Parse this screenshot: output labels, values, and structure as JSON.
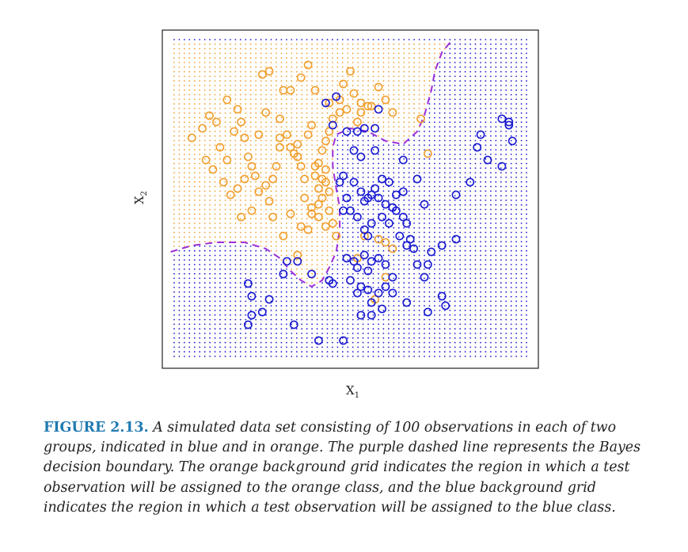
{
  "figure": {
    "label": "FIGURE 2.13.",
    "caption": "A simulated data set consisting of 100 observations in each of two groups, indicated in blue and in orange. The purple dashed line represents the Bayes decision boundary. The orange background grid indicates the region in which a test observation will be assigned to the orange class, and the blue background grid indicates the region in which a test observation will be assigned to the blue class."
  },
  "chart_data": {
    "type": "scatter",
    "xlabel": "X",
    "xlabel_subscript": "1",
    "ylabel": "X",
    "ylabel_subscript": "2",
    "xlim": [
      0,
      1
    ],
    "ylim": [
      0,
      1
    ],
    "axis_ticks": false,
    "colors": {
      "orange": "#f0a030",
      "blue": "#1a1ad0",
      "boundary": "#9b30d9"
    },
    "boundary": [
      [
        -0.01,
        0.33
      ],
      [
        0.05,
        0.35
      ],
      [
        0.12,
        0.36
      ],
      [
        0.2,
        0.36
      ],
      [
        0.26,
        0.34
      ],
      [
        0.3,
        0.31
      ],
      [
        0.33,
        0.27
      ],
      [
        0.36,
        0.24
      ],
      [
        0.39,
        0.22
      ],
      [
        0.42,
        0.24
      ],
      [
        0.44,
        0.28
      ],
      [
        0.46,
        0.33
      ],
      [
        0.47,
        0.4
      ],
      [
        0.47,
        0.47
      ],
      [
        0.46,
        0.53
      ],
      [
        0.45,
        0.6
      ],
      [
        0.45,
        0.66
      ],
      [
        0.46,
        0.7
      ],
      [
        0.5,
        0.72
      ],
      [
        0.55,
        0.71
      ],
      [
        0.6,
        0.68
      ],
      [
        0.65,
        0.67
      ],
      [
        0.69,
        0.71
      ],
      [
        0.71,
        0.76
      ],
      [
        0.73,
        0.84
      ],
      [
        0.74,
        0.9
      ],
      [
        0.76,
        0.96
      ],
      [
        0.79,
        1.0
      ]
    ],
    "series": [
      {
        "name": "orange",
        "points": [
          [
            0.05,
            0.69
          ],
          [
            0.08,
            0.72
          ],
          [
            0.1,
            0.76
          ],
          [
            0.12,
            0.74
          ],
          [
            0.13,
            0.66
          ],
          [
            0.15,
            0.62
          ],
          [
            0.17,
            0.71
          ],
          [
            0.19,
            0.74
          ],
          [
            0.2,
            0.69
          ],
          [
            0.22,
            0.6
          ],
          [
            0.24,
            0.7
          ],
          [
            0.23,
            0.57
          ],
          [
            0.26,
            0.54
          ],
          [
            0.27,
            0.49
          ],
          [
            0.28,
            0.56
          ],
          [
            0.29,
            0.6
          ],
          [
            0.3,
            0.66
          ],
          [
            0.3,
            0.69
          ],
          [
            0.32,
            0.7
          ],
          [
            0.33,
            0.66
          ],
          [
            0.34,
            0.64
          ],
          [
            0.35,
            0.63
          ],
          [
            0.35,
            0.67
          ],
          [
            0.36,
            0.6
          ],
          [
            0.37,
            0.56
          ],
          [
            0.38,
            0.7
          ],
          [
            0.39,
            0.73
          ],
          [
            0.4,
            0.6
          ],
          [
            0.41,
            0.53
          ],
          [
            0.42,
            0.5
          ],
          [
            0.43,
            0.55
          ],
          [
            0.44,
            0.52
          ],
          [
            0.44,
            0.46
          ],
          [
            0.45,
            0.42
          ],
          [
            0.46,
            0.38
          ],
          [
            0.43,
            0.41
          ],
          [
            0.41,
            0.44
          ],
          [
            0.39,
            0.47
          ],
          [
            0.37,
            0.5
          ],
          [
            0.4,
            0.57
          ],
          [
            0.41,
            0.61
          ],
          [
            0.42,
            0.65
          ],
          [
            0.43,
            0.68
          ],
          [
            0.44,
            0.71
          ],
          [
            0.45,
            0.75
          ],
          [
            0.47,
            0.77
          ],
          [
            0.49,
            0.78
          ],
          [
            0.52,
            0.74
          ],
          [
            0.53,
            0.77
          ],
          [
            0.55,
            0.79
          ],
          [
            0.58,
            0.85
          ],
          [
            0.6,
            0.81
          ],
          [
            0.62,
            0.77
          ],
          [
            0.7,
            0.75
          ],
          [
            0.72,
            0.64
          ],
          [
            0.44,
            0.8
          ],
          [
            0.47,
            0.81
          ],
          [
            0.48,
            0.86
          ],
          [
            0.51,
            0.83
          ],
          [
            0.25,
            0.89
          ],
          [
            0.27,
            0.9
          ],
          [
            0.31,
            0.84
          ],
          [
            0.33,
            0.84
          ],
          [
            0.36,
            0.88
          ],
          [
            0.38,
            0.92
          ],
          [
            0.4,
            0.84
          ],
          [
            0.5,
            0.9
          ],
          [
            0.53,
            0.8
          ],
          [
            0.56,
            0.79
          ],
          [
            0.58,
            0.37
          ],
          [
            0.6,
            0.36
          ],
          [
            0.62,
            0.34
          ],
          [
            0.6,
            0.25
          ],
          [
            0.54,
            0.38
          ],
          [
            0.52,
            0.31
          ],
          [
            0.57,
            0.18
          ],
          [
            0.09,
            0.62
          ],
          [
            0.11,
            0.59
          ],
          [
            0.14,
            0.55
          ],
          [
            0.16,
            0.51
          ],
          [
            0.18,
            0.53
          ],
          [
            0.2,
            0.56
          ],
          [
            0.21,
            0.63
          ],
          [
            0.24,
            0.52
          ],
          [
            0.19,
            0.44
          ],
          [
            0.22,
            0.46
          ],
          [
            0.31,
            0.38
          ],
          [
            0.35,
            0.32
          ],
          [
            0.38,
            0.4
          ],
          [
            0.39,
            0.45
          ],
          [
            0.41,
            0.48
          ],
          [
            0.42,
            0.56
          ],
          [
            0.43,
            0.59
          ],
          [
            0.28,
            0.44
          ],
          [
            0.33,
            0.45
          ],
          [
            0.36,
            0.41
          ],
          [
            0.15,
            0.81
          ],
          [
            0.18,
            0.78
          ],
          [
            0.3,
            0.75
          ],
          [
            0.26,
            0.77
          ]
        ]
      },
      {
        "name": "blue",
        "points": [
          [
            0.43,
            0.8
          ],
          [
            0.46,
            0.82
          ],
          [
            0.45,
            0.73
          ],
          [
            0.49,
            0.71
          ],
          [
            0.52,
            0.71
          ],
          [
            0.54,
            0.72
          ],
          [
            0.57,
            0.72
          ],
          [
            0.58,
            0.78
          ],
          [
            0.51,
            0.65
          ],
          [
            0.53,
            0.63
          ],
          [
            0.57,
            0.65
          ],
          [
            0.47,
            0.55
          ],
          [
            0.48,
            0.57
          ],
          [
            0.49,
            0.5
          ],
          [
            0.51,
            0.55
          ],
          [
            0.53,
            0.52
          ],
          [
            0.54,
            0.49
          ],
          [
            0.55,
            0.5
          ],
          [
            0.56,
            0.51
          ],
          [
            0.57,
            0.53
          ],
          [
            0.58,
            0.5
          ],
          [
            0.59,
            0.56
          ],
          [
            0.61,
            0.55
          ],
          [
            0.63,
            0.51
          ],
          [
            0.65,
            0.52
          ],
          [
            0.63,
            0.46
          ],
          [
            0.65,
            0.44
          ],
          [
            0.66,
            0.42
          ],
          [
            0.64,
            0.38
          ],
          [
            0.66,
            0.35
          ],
          [
            0.67,
            0.37
          ],
          [
            0.68,
            0.34
          ],
          [
            0.69,
            0.29
          ],
          [
            0.71,
            0.25
          ],
          [
            0.72,
            0.29
          ],
          [
            0.73,
            0.33
          ],
          [
            0.76,
            0.19
          ],
          [
            0.72,
            0.14
          ],
          [
            0.66,
            0.17
          ],
          [
            0.62,
            0.2
          ],
          [
            0.6,
            0.22
          ],
          [
            0.62,
            0.25
          ],
          [
            0.6,
            0.29
          ],
          [
            0.58,
            0.31
          ],
          [
            0.56,
            0.3
          ],
          [
            0.55,
            0.27
          ],
          [
            0.54,
            0.32
          ],
          [
            0.53,
            0.22
          ],
          [
            0.56,
            0.17
          ],
          [
            0.58,
            0.2
          ],
          [
            0.59,
            0.15
          ],
          [
            0.53,
            0.13
          ],
          [
            0.56,
            0.13
          ],
          [
            0.49,
            0.31
          ],
          [
            0.51,
            0.3
          ],
          [
            0.52,
            0.28
          ],
          [
            0.48,
            0.46
          ],
          [
            0.5,
            0.46
          ],
          [
            0.52,
            0.44
          ],
          [
            0.54,
            0.4
          ],
          [
            0.55,
            0.38
          ],
          [
            0.56,
            0.42
          ],
          [
            0.59,
            0.44
          ],
          [
            0.61,
            0.42
          ],
          [
            0.62,
            0.47
          ],
          [
            0.6,
            0.48
          ],
          [
            0.65,
            0.62
          ],
          [
            0.69,
            0.56
          ],
          [
            0.71,
            0.48
          ],
          [
            0.76,
            0.35
          ],
          [
            0.8,
            0.37
          ],
          [
            0.77,
            0.16
          ],
          [
            0.8,
            0.51
          ],
          [
            0.84,
            0.55
          ],
          [
            0.86,
            0.66
          ],
          [
            0.87,
            0.7
          ],
          [
            0.89,
            0.62
          ],
          [
            0.93,
            0.6
          ],
          [
            0.95,
            0.73
          ],
          [
            0.95,
            0.74
          ],
          [
            0.96,
            0.68
          ],
          [
            0.93,
            0.75
          ],
          [
            0.21,
            0.23
          ],
          [
            0.22,
            0.19
          ],
          [
            0.27,
            0.18
          ],
          [
            0.25,
            0.14
          ],
          [
            0.22,
            0.13
          ],
          [
            0.21,
            0.1
          ],
          [
            0.34,
            0.1
          ],
          [
            0.41,
            0.05
          ],
          [
            0.48,
            0.05
          ],
          [
            0.31,
            0.26
          ],
          [
            0.32,
            0.3
          ],
          [
            0.35,
            0.3
          ],
          [
            0.39,
            0.26
          ],
          [
            0.44,
            0.24
          ],
          [
            0.45,
            0.23
          ],
          [
            0.5,
            0.24
          ],
          [
            0.52,
            0.2
          ],
          [
            0.55,
            0.21
          ]
        ]
      }
    ]
  }
}
